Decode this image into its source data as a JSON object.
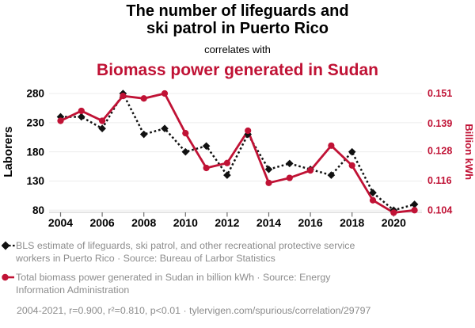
{
  "header": {
    "title_line1": "The number of lifeguards and",
    "title_line2": "ski patrol in Puerto Rico",
    "connector": "correlates with",
    "subtitle": "Biomass power generated in Sudan"
  },
  "colors": {
    "accent_red": "#c01235",
    "series_black": "#111111",
    "legend_gray": "#8c8c8c",
    "grid": "#ececec",
    "axis_line": "#c9c9c9",
    "tick_mark": "#6e6e6e"
  },
  "chart_data": {
    "type": "line",
    "x": [
      2004,
      2005,
      2006,
      2007,
      2008,
      2009,
      2010,
      2011,
      2012,
      2013,
      2014,
      2015,
      2016,
      2017,
      2018,
      2019,
      2020,
      2021
    ],
    "x_ticks": [
      2004,
      2006,
      2008,
      2010,
      2012,
      2014,
      2016,
      2018,
      2020
    ],
    "series": [
      {
        "name": "lifeguards-ski-patrol-puerto-rico",
        "axis": "left",
        "style": "dashed",
        "marker": "diamond",
        "color": "#111111",
        "values": [
          240,
          240,
          220,
          280,
          210,
          220,
          180,
          190,
          140,
          210,
          150,
          160,
          150,
          140,
          180,
          110,
          80,
          90
        ]
      },
      {
        "name": "biomass-power-sudan",
        "axis": "right",
        "style": "solid",
        "marker": "circle",
        "color": "#c01235",
        "values": [
          0.14,
          0.144,
          0.14,
          0.15,
          0.149,
          0.151,
          0.135,
          0.121,
          0.123,
          0.136,
          0.115,
          0.117,
          0.12,
          0.13,
          0.122,
          0.108,
          0.103,
          0.104
        ]
      }
    ],
    "left_axis": {
      "label": "Laborers",
      "ticks": [
        280,
        230,
        180,
        130,
        80
      ],
      "range": [
        80,
        280
      ]
    },
    "right_axis": {
      "label": "Billion kWh",
      "ticks": [
        "0.151",
        "0.139",
        "0.128",
        "0.116",
        "0.104"
      ],
      "range": [
        0.104,
        0.151
      ]
    },
    "grid": true,
    "legend_position": "bottom"
  },
  "legend": {
    "entries": [
      {
        "marker": "black-diamond-dashed",
        "line1": "BLS estimate of lifeguards, ski patrol, and other recreational protective service",
        "line2": "workers in Puerto Rico · Source: Bureau of Larbor Statistics"
      },
      {
        "marker": "red-circle-solid",
        "line1": "Total biomass power generated in Sudan in billion kWh · Source: Energy",
        "line2": "Information Administration"
      }
    ],
    "footnote": "2004-2021, r=0.900, r²=0.810, p<0.01 · tylervigen.com/spurious/correlation/29797"
  }
}
